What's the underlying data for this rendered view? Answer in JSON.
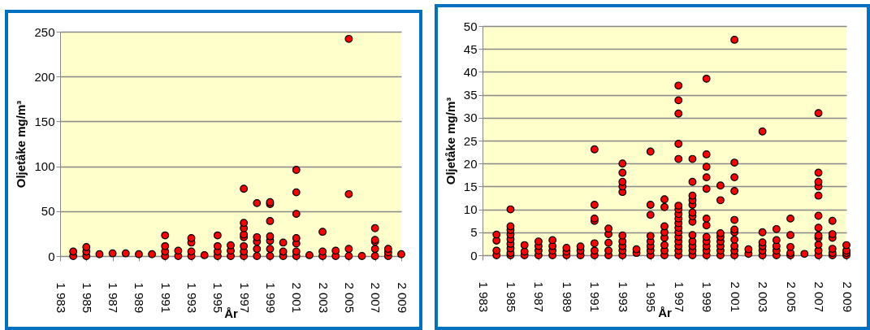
{
  "chart_data": [
    {
      "type": "scatter",
      "xlabel": "År",
      "ylabel": "Oljetåke mg/m³",
      "xlim": [
        1983,
        2009
      ],
      "ylim": [
        0,
        250
      ],
      "grid": "y",
      "marker": "circle",
      "xticks": [
        {
          "value": 1983,
          "label": "1 983"
        },
        {
          "value": 1985,
          "label": "1 985"
        },
        {
          "value": 1987,
          "label": "1 987"
        },
        {
          "value": 1989,
          "label": "1 989"
        },
        {
          "value": 1991,
          "label": "1 991"
        },
        {
          "value": 1993,
          "label": "1 993"
        },
        {
          "value": 1995,
          "label": "1 995"
        },
        {
          "value": 1997,
          "label": "1 997"
        },
        {
          "value": 1999,
          "label": "1 999"
        },
        {
          "value": 2001,
          "label": "2 001"
        },
        {
          "value": 2003,
          "label": "2 003"
        },
        {
          "value": 2005,
          "label": "2 005"
        },
        {
          "value": 2007,
          "label": "2 007"
        },
        {
          "value": 2009,
          "label": "2 009"
        }
      ],
      "yticks": [
        0,
        50,
        100,
        150,
        200,
        250
      ],
      "series": [
        {
          "color": "#ff0000",
          "x": [
            1984,
            1984,
            1985,
            1985,
            1985,
            1986,
            1987,
            1988,
            1989,
            1990,
            1991,
            1991,
            1991,
            1991,
            1992,
            1992,
            1993,
            1993,
            1993,
            1993,
            1994,
            1995,
            1995,
            1995,
            1995,
            1996,
            1996,
            1996,
            1997,
            1997,
            1997,
            1997,
            1997,
            1997,
            1997,
            1997,
            1998,
            1998,
            1998,
            1998,
            1998,
            1999,
            1999,
            1999,
            1999,
            1999,
            1999,
            1999,
            2000,
            2000,
            2000,
            2001,
            2001,
            2001,
            2001,
            2001,
            2001,
            2001,
            2002,
            2003,
            2003,
            2003,
            2004,
            2004,
            2005,
            2005,
            2005,
            2005,
            2006,
            2007,
            2007,
            2007,
            2007,
            2007,
            2008,
            2008,
            2008,
            2009
          ],
          "values": [
            0,
            5,
            0,
            5,
            10,
            2,
            3,
            3,
            2,
            2,
            0,
            5,
            11,
            23,
            0,
            6,
            0,
            5,
            15,
            20,
            1,
            0,
            5,
            11,
            23,
            0,
            6,
            12,
            0,
            5,
            11,
            21,
            24,
            31,
            37,
            75,
            0,
            8,
            16,
            21,
            59,
            0,
            8,
            17,
            22,
            39,
            58,
            60,
            0,
            5,
            15,
            0,
            5,
            14,
            20,
            47,
            71,
            96,
            1,
            0,
            5,
            27,
            0,
            6,
            0,
            8,
            69,
            242,
            0,
            0,
            8,
            16,
            18,
            31,
            0,
            4,
            8,
            2
          ]
        }
      ]
    },
    {
      "type": "scatter",
      "xlabel": "År",
      "ylabel": "Oljetåke mg/m³",
      "xlim": [
        1983,
        2009
      ],
      "ylim": [
        0,
        50
      ],
      "grid": "y",
      "marker": "circle",
      "xticks": [
        {
          "value": 1983,
          "label": "1 983"
        },
        {
          "value": 1985,
          "label": "1 985"
        },
        {
          "value": 1987,
          "label": "1 987"
        },
        {
          "value": 1989,
          "label": "1 989"
        },
        {
          "value": 1991,
          "label": "1 991"
        },
        {
          "value": 1993,
          "label": "1 993"
        },
        {
          "value": 1995,
          "label": "1 995"
        },
        {
          "value": 1997,
          "label": "1 997"
        },
        {
          "value": 1999,
          "label": "1 999"
        },
        {
          "value": 2001,
          "label": "2 001"
        },
        {
          "value": 2003,
          "label": "2 003"
        },
        {
          "value": 2005,
          "label": "2 005"
        },
        {
          "value": 2007,
          "label": "2 007"
        },
        {
          "value": 2009,
          "label": "2 009"
        }
      ],
      "yticks": [
        0,
        5,
        10,
        15,
        20,
        25,
        30,
        35,
        40,
        45,
        50
      ],
      "series": [
        {
          "color": "#ff0000",
          "x": [
            1984,
            1984,
            1984,
            1984,
            1985,
            1985,
            1985,
            1985,
            1985,
            1985,
            1985,
            1985,
            1985,
            1986,
            1986,
            1986,
            1987,
            1987,
            1987,
            1987,
            1988,
            1988,
            1988,
            1988,
            1989,
            1989,
            1989,
            1990,
            1990,
            1990,
            1991,
            1991,
            1991,
            1991,
            1991,
            1991,
            1991,
            1992,
            1992,
            1992,
            1992,
            1992,
            1993,
            1993,
            1993,
            1993,
            1993,
            1993,
            1993,
            1993,
            1993,
            1993,
            1994,
            1994,
            1995,
            1995,
            1995,
            1995,
            1995,
            1995,
            1995,
            1995,
            1996,
            1996,
            1996,
            1996,
            1996,
            1996,
            1996,
            1996,
            1997,
            1997,
            1997,
            1997,
            1997,
            1997,
            1997,
            1997,
            1997,
            1997,
            1997,
            1997,
            1997,
            1997,
            1997,
            1997,
            1997,
            1998,
            1998,
            1998,
            1998,
            1998,
            1998,
            1998,
            1998,
            1998,
            1998,
            1998,
            1998,
            1998,
            1999,
            1999,
            1999,
            1999,
            1999,
            1999,
            1999,
            1999,
            1999,
            1999,
            1999,
            1999,
            2000,
            2000,
            2000,
            2000,
            2000,
            2000,
            2000,
            2000,
            2001,
            2001,
            2001,
            2001,
            2001,
            2001,
            2001,
            2001,
            2001,
            2001,
            2001,
            2002,
            2002,
            2003,
            2003,
            2003,
            2003,
            2003,
            2003,
            2004,
            2004,
            2004,
            2004,
            2004,
            2005,
            2005,
            2005,
            2005,
            2005,
            2006,
            2007,
            2007,
            2007,
            2007,
            2007,
            2007,
            2007,
            2007,
            2007,
            2007,
            2007,
            2007,
            2008,
            2008,
            2008,
            2008,
            2008,
            2008,
            2009,
            2009,
            2009,
            2009
          ],
          "values": [
            0,
            1,
            3.2,
            4.5,
            0,
            0.5,
            1.5,
            2.5,
            3.5,
            4.5,
            5.5,
            6.3,
            10,
            0,
            0.8,
            2.2,
            0,
            1,
            2,
            3,
            0,
            1,
            2,
            3.3,
            0,
            0.8,
            1.6,
            0,
            1,
            1.9,
            0,
            1,
            2.6,
            7.5,
            8,
            11,
            23.1,
            0,
            1,
            2.7,
            4.6,
            5.8,
            0,
            1,
            2,
            3,
            4.3,
            13.8,
            15,
            16,
            18,
            20,
            0.5,
            1.3,
            0,
            1,
            2,
            3,
            4.2,
            8.8,
            11,
            22.6,
            0,
            1,
            2.2,
            3.8,
            5,
            6.3,
            10.5,
            12.2,
            0,
            1,
            2,
            3,
            4,
            5,
            6,
            7,
            8,
            9,
            10,
            10.8,
            21,
            24.3,
            30.9,
            33.8,
            37,
            0,
            1,
            2,
            3,
            4.4,
            7.3,
            8.5,
            9.3,
            11,
            12,
            13,
            16,
            21,
            0,
            1,
            2,
            3,
            4,
            6.5,
            8,
            14.5,
            17,
            19.3,
            22,
            38.5,
            0,
            1,
            2,
            3,
            4,
            4.8,
            12,
            15.2,
            0,
            1,
            2,
            3.4,
            5,
            5.6,
            7.7,
            14,
            17,
            20.2,
            47,
            0.3,
            1.3,
            0,
            1,
            2,
            2.8,
            5,
            27,
            0,
            1,
            2,
            3.3,
            5.7,
            0,
            0.5,
            1.8,
            4.4,
            8,
            0.3,
            0,
            1,
            2.3,
            3.8,
            4.3,
            6,
            8.6,
            13,
            15,
            16,
            18,
            31,
            0,
            0.5,
            1.4,
            3.8,
            4.6,
            7.5,
            0,
            0.5,
            1,
            2.2
          ]
        }
      ]
    }
  ]
}
